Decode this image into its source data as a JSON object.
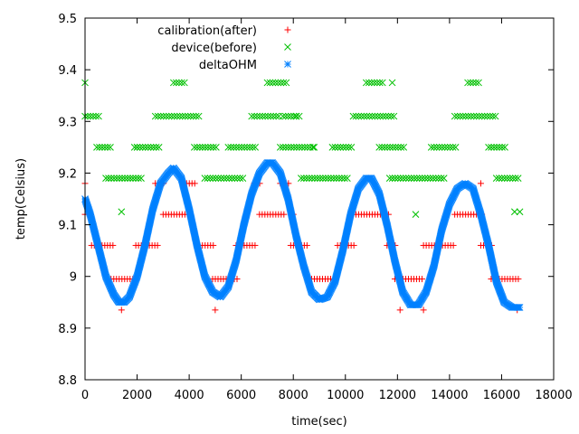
{
  "chart_data": {
    "type": "scatter",
    "title": "",
    "xlabel": "time(sec)",
    "ylabel": "temp(Celsius)",
    "xlim": [
      0,
      18000
    ],
    "ylim": [
      8.8,
      9.5
    ],
    "x_ticks": [
      0,
      2000,
      4000,
      6000,
      8000,
      10000,
      12000,
      14000,
      16000,
      18000
    ],
    "y_ticks": [
      8.8,
      8.9,
      9,
      9.1,
      9.2,
      9.3,
      9.4,
      9.5
    ],
    "x_tick_labels": [
      "0",
      "2000",
      "4000",
      "6000",
      "8000",
      "10000",
      "12000",
      "14000",
      "16000",
      "18000"
    ],
    "y_tick_labels": [
      "8.8",
      "8.9",
      "9",
      "9.1",
      "9.2",
      "9.3",
      "9.4",
      "9.5"
    ],
    "grid": false,
    "legend_position": "top-left",
    "series": [
      {
        "name": "calibration(after)",
        "marker": "plus",
        "color": "#ff0000",
        "segments": [
          {
            "x0": 0,
            "x1": 250,
            "y": 9.12
          },
          {
            "x0": 250,
            "x1": 500,
            "y": 9.06
          },
          {
            "x0": 550,
            "x1": 1100,
            "y": 9.06
          },
          {
            "x0": 1000,
            "x1": 1900,
            "y": 8.995
          },
          {
            "x0": 1950,
            "x1": 2800,
            "y": 9.06
          },
          {
            "x0": 2700,
            "x1": 3100,
            "y": 9.18
          },
          {
            "x0": 3000,
            "x1": 4100,
            "y": 9.12
          },
          {
            "x0": 3900,
            "x1": 4300,
            "y": 9.18
          },
          {
            "x0": 4300,
            "x1": 5000,
            "y": 9.06
          },
          {
            "x0": 4900,
            "x1": 5900,
            "y": 8.995
          },
          {
            "x0": 5800,
            "x1": 6600,
            "y": 9.06
          },
          {
            "x0": 6500,
            "x1": 6800,
            "y": 9.18
          },
          {
            "x0": 6700,
            "x1": 7700,
            "y": 9.12
          },
          {
            "x0": 7500,
            "x1": 7900,
            "y": 9.18
          },
          {
            "x0": 7900,
            "x1": 8600,
            "y": 9.06
          },
          {
            "x0": 8600,
            "x1": 9700,
            "y": 8.995
          },
          {
            "x0": 9700,
            "x1": 10400,
            "y": 9.06
          },
          {
            "x0": 10300,
            "x1": 11700,
            "y": 9.12
          },
          {
            "x0": 11600,
            "x1": 12000,
            "y": 9.06
          },
          {
            "x0": 11900,
            "x1": 13000,
            "y": 8.995
          },
          {
            "x0": 13000,
            "x1": 14200,
            "y": 9.06
          },
          {
            "x0": 14200,
            "x1": 15300,
            "y": 9.12
          },
          {
            "x0": 15200,
            "x1": 15700,
            "y": 9.06
          },
          {
            "x0": 15600,
            "x1": 16700,
            "y": 8.995
          }
        ],
        "outliers": [
          [
            0,
            9.18
          ],
          [
            1400,
            8.935
          ],
          [
            5000,
            8.935
          ],
          [
            8000,
            9.12
          ],
          [
            12100,
            8.935
          ],
          [
            13000,
            8.935
          ],
          [
            15200,
            9.18
          ],
          [
            16600,
            8.935
          ]
        ]
      },
      {
        "name": "device(before)",
        "marker": "cross",
        "color": "#00c000",
        "segments": [
          {
            "x0": 0,
            "x1": 600,
            "y": 9.31
          },
          {
            "x0": 450,
            "x1": 1000,
            "y": 9.25
          },
          {
            "x0": 800,
            "x1": 2200,
            "y": 9.19
          },
          {
            "x0": 1900,
            "x1": 2900,
            "y": 9.25
          },
          {
            "x0": 2700,
            "x1": 4400,
            "y": 9.31
          },
          {
            "x0": 3400,
            "x1": 3900,
            "y": 9.375
          },
          {
            "x0": 4200,
            "x1": 5100,
            "y": 9.25
          },
          {
            "x0": 4600,
            "x1": 6100,
            "y": 9.19
          },
          {
            "x0": 5600,
            "x1": 6600,
            "y": 9.25
          },
          {
            "x0": 6400,
            "x1": 7500,
            "y": 9.31
          },
          {
            "x0": 7000,
            "x1": 7800,
            "y": 9.375
          },
          {
            "x0": 7600,
            "x1": 8300,
            "y": 9.31
          },
          {
            "x0": 7500,
            "x1": 8800,
            "y": 9.25
          },
          {
            "x0": 8300,
            "x1": 10100,
            "y": 9.19
          },
          {
            "x0": 9500,
            "x1": 10300,
            "y": 9.25
          },
          {
            "x0": 10300,
            "x1": 11900,
            "y": 9.31
          },
          {
            "x0": 10800,
            "x1": 11500,
            "y": 9.375
          },
          {
            "x0": 11300,
            "x1": 12300,
            "y": 9.25
          },
          {
            "x0": 11700,
            "x1": 13800,
            "y": 9.19
          },
          {
            "x0": 13400,
            "x1": 14300,
            "y": 9.25
          },
          {
            "x0": 14200,
            "x1": 15800,
            "y": 9.31
          },
          {
            "x0": 14700,
            "x1": 15200,
            "y": 9.375
          },
          {
            "x0": 15500,
            "x1": 16200,
            "y": 9.25
          },
          {
            "x0": 15800,
            "x1": 16700,
            "y": 9.19
          }
        ],
        "outliers": [
          [
            0,
            9.375
          ],
          [
            1400,
            9.125
          ],
          [
            2000,
            9.25
          ],
          [
            5500,
            9.25
          ],
          [
            8100,
            9.31
          ],
          [
            8800,
            9.25
          ],
          [
            11800,
            9.375
          ],
          [
            12700,
            9.12
          ],
          [
            13300,
            9.25
          ],
          [
            16500,
            9.125
          ],
          [
            16700,
            9.125
          ]
        ]
      },
      {
        "name": "deltaOHM",
        "marker": "star",
        "color": "#0080ff",
        "description": "sinusoidal trace",
        "x": [
          0,
          200,
          500,
          800,
          1100,
          1300,
          1500,
          1700,
          2000,
          2300,
          2600,
          2900,
          3200,
          3400,
          3700,
          4000,
          4300,
          4600,
          4900,
          5200,
          5500,
          5800,
          6100,
          6400,
          6700,
          7000,
          7200,
          7500,
          7800,
          8100,
          8400,
          8700,
          9000,
          9300,
          9600,
          9900,
          10200,
          10500,
          10800,
          11000,
          11300,
          11600,
          11900,
          12200,
          12500,
          12800,
          13100,
          13400,
          13700,
          14000,
          14300,
          14600,
          14900,
          15200,
          15500,
          15800,
          16100,
          16400,
          16700
        ],
        "y": [
          9.15,
          9.12,
          9.06,
          9.0,
          8.965,
          8.95,
          8.95,
          8.96,
          9.0,
          9.06,
          9.13,
          9.18,
          9.2,
          9.21,
          9.19,
          9.13,
          9.06,
          9.0,
          8.97,
          8.96,
          8.98,
          9.03,
          9.1,
          9.16,
          9.2,
          9.22,
          9.22,
          9.2,
          9.15,
          9.08,
          9.02,
          8.97,
          8.955,
          8.96,
          8.99,
          9.05,
          9.12,
          9.17,
          9.19,
          9.19,
          9.16,
          9.1,
          9.03,
          8.97,
          8.945,
          8.945,
          8.97,
          9.02,
          9.09,
          9.14,
          9.17,
          9.18,
          9.17,
          9.12,
          9.06,
          8.99,
          8.95,
          8.94,
          8.94
        ]
      }
    ]
  }
}
